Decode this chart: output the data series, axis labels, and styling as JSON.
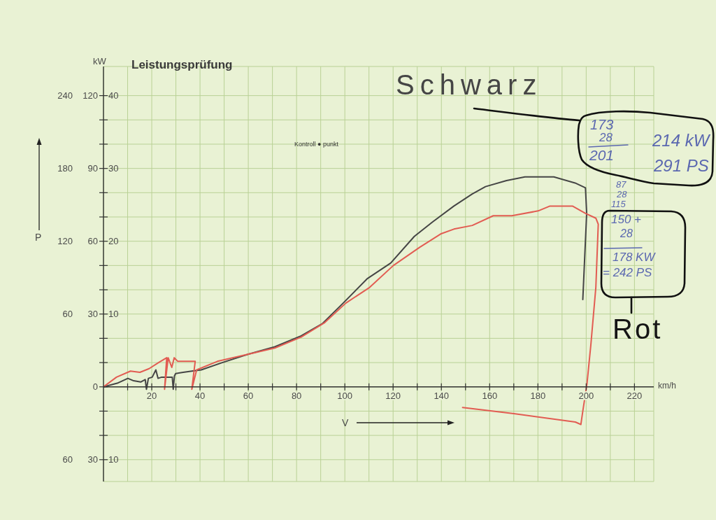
{
  "chart_data": {
    "type": "line",
    "title": "Leistungsprüfung",
    "xlabel": "V",
    "ylabel": "P",
    "xlim": [
      0,
      228
    ],
    "xticks": [
      {
        "value": 10,
        "label": null
      },
      20,
      {
        "value": 30,
        "label": null
      },
      40,
      {
        "value": 50,
        "label": null
      },
      60,
      {
        "value": 70,
        "label": null
      },
      80,
      {
        "value": 90,
        "label": null
      },
      100,
      {
        "value": 110,
        "label": null
      },
      120,
      {
        "value": 130,
        "label": null
      },
      140,
      {
        "value": 150,
        "label": null
      },
      160,
      {
        "value": 170,
        "label": null
      },
      180,
      {
        "value": 190,
        "label": null
      },
      200,
      {
        "value": 210,
        "label": null
      },
      220
    ],
    "ylim": [
      -78,
      264
    ],
    "yticks": [
      {
        "value": -60,
        "label": "60"
      },
      {
        "value": -40,
        "label": null
      },
      {
        "value": -20,
        "label": null
      },
      {
        "value": 0,
        "label": null
      },
      {
        "value": 20,
        "label": null
      },
      {
        "value": 40,
        "label": null
      },
      60,
      {
        "value": 80,
        "label": null
      },
      {
        "value": 100,
        "label": null
      },
      120,
      {
        "value": 140,
        "label": null
      },
      {
        "value": 160,
        "label": null
      },
      180,
      {
        "value": 200,
        "label": null
      },
      {
        "value": 220,
        "label": null
      },
      240
    ],
    "y2lim": [
      -39,
      132
    ],
    "y2ticks": [
      {
        "value": -30,
        "label": "30"
      },
      0,
      30,
      60,
      90,
      120
    ],
    "y3lim": [
      -13,
      44
    ],
    "y3ticks": [
      {
        "value": -10,
        "label": "10"
      },
      10,
      20,
      30,
      40
    ],
    "grid": true,
    "marker": "none",
    "line_style": "solid",
    "series": [
      {
        "name": "Schwarz",
        "color": "#454545",
        "x": [
          0,
          5.7,
          10.1,
          12.5,
          15.4,
          17.3,
          17.8,
          18.6,
          20.2,
          21.7,
          22.6,
          24.1,
          27,
          28.5,
          28.9,
          29.4,
          29.9,
          33,
          36.6,
          40.5,
          49.2,
          60.1,
          71,
          81.9,
          90.6,
          99.3,
          109.2,
          119,
          128.8,
          136.4,
          145.2,
          152.8,
          158.3,
          167,
          174.6,
          186.6,
          195.4,
          199.7,
          200.2,
          198.6
        ],
        "values": [
          0,
          3,
          7,
          5,
          4,
          6,
          -2,
          7,
          8,
          14,
          7,
          8,
          8,
          8,
          -2,
          9,
          11,
          12,
          13,
          14,
          20,
          27,
          33,
          42,
          52,
          69,
          89,
          102,
          124,
          136,
          149,
          159,
          165,
          170,
          173,
          173,
          168,
          164,
          143,
          72
        ]
      },
      {
        "name": "Rot",
        "color": "#e25c52",
        "x": [
          0,
          5.4,
          11.2,
          15.1,
          18.9,
          22.8,
          26.2,
          25.3,
          26.8,
          28.3,
          29.3,
          30.8,
          36.6,
          38,
          36.6,
          38.6,
          47.2,
          60.1,
          71,
          81.9,
          91.7,
          100.4,
          110.3,
          120.1,
          131,
          139.7,
          145.2,
          152.8,
          161.5,
          169.2,
          180.1,
          185,
          194.3,
          199.7,
          204,
          205,
          204,
          201.9,
          200.3,
          198.6,
          197.8,
          195.5,
          170,
          148.8
        ],
        "values": [
          0,
          8,
          13,
          12,
          15,
          20,
          24,
          -2,
          24,
          16,
          24,
          21,
          21,
          21,
          -2,
          14,
          21,
          27,
          32,
          41,
          53,
          69,
          82,
          100,
          115,
          126,
          130,
          133,
          141,
          141,
          145,
          149,
          149,
          143,
          139,
          134,
          82,
          34,
          2,
          -20,
          -31,
          -29,
          -22,
          -17
        ]
      }
    ],
    "annotations": [
      "kW",
      "km/h",
      "Kontroll ● punkt",
      "173",
      "28",
      "201",
      "214 kW",
      "291 PS",
      "87",
      "28",
      "115",
      "150 +",
      "28",
      "178 KW",
      "= 242 PS"
    ]
  }
}
